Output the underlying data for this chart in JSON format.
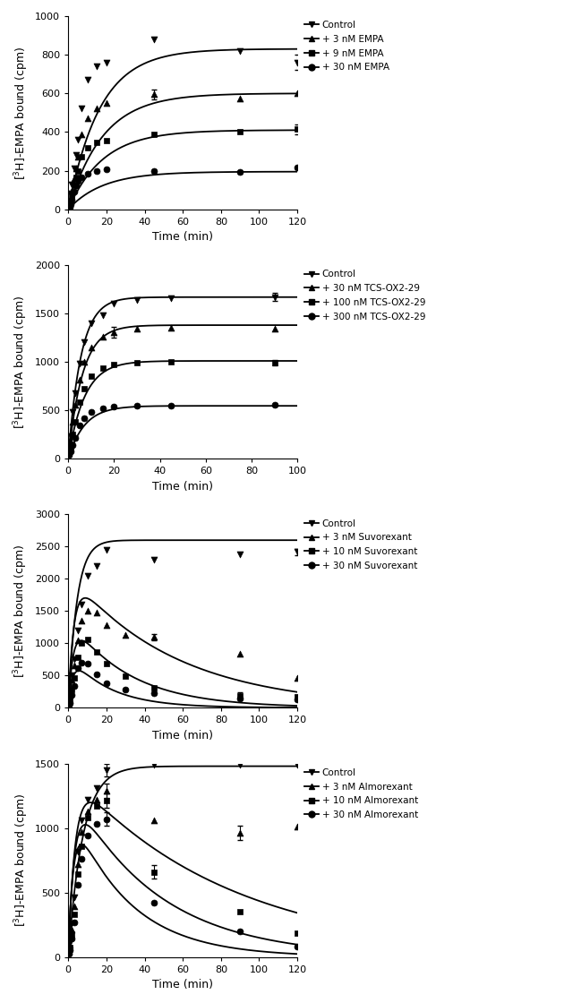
{
  "panels": [
    {
      "ylabel": "[$^{3}$H]-EMPA bound (cpm)",
      "xlabel": "Time (min)",
      "ylim": [
        0,
        1000
      ],
      "yticks": [
        0,
        200,
        400,
        600,
        800,
        1000
      ],
      "xlim": [
        0,
        120
      ],
      "xticks": [
        0,
        20,
        40,
        60,
        80,
        100,
        120
      ],
      "legend_labels": [
        "Control",
        "+ 3 nM EMPA",
        "+ 9 nM EMPA",
        "+ 30 nM EMPA"
      ],
      "markers": [
        "v",
        "^",
        "s",
        "o"
      ],
      "curves": [
        {
          "Bmax": 830,
          "kon": 0.06,
          "type": "assoc"
        },
        {
          "Bmax": 600,
          "kon": 0.055,
          "type": "assoc"
        },
        {
          "Bmax": 410,
          "kon": 0.055,
          "type": "assoc"
        },
        {
          "Bmax": 195,
          "kon": 0.055,
          "type": "assoc"
        }
      ],
      "scatter_data": [
        {
          "x": [
            0.5,
            1,
            1.5,
            2,
            3,
            4,
            5,
            7,
            10,
            15,
            20,
            45,
            90,
            120
          ],
          "y": [
            15,
            35,
            80,
            130,
            210,
            280,
            360,
            520,
            670,
            740,
            760,
            880,
            820,
            760
          ],
          "yerr": [
            0,
            0,
            0,
            0,
            0,
            0,
            0,
            0,
            0,
            0,
            0,
            0,
            0,
            40
          ]
        },
        {
          "x": [
            0.5,
            1,
            1.5,
            2,
            3,
            4,
            5,
            7,
            10,
            15,
            20,
            45,
            90,
            120
          ],
          "y": [
            10,
            25,
            55,
            95,
            160,
            210,
            270,
            390,
            470,
            520,
            550,
            595,
            575,
            600
          ],
          "yerr": [
            0,
            0,
            0,
            0,
            0,
            0,
            0,
            0,
            0,
            0,
            0,
            25,
            0,
            0
          ]
        },
        {
          "x": [
            0.5,
            1,
            1.5,
            2,
            3,
            4,
            5,
            7,
            10,
            15,
            20,
            45,
            90,
            120
          ],
          "y": [
            8,
            18,
            40,
            70,
            125,
            165,
            200,
            270,
            320,
            345,
            355,
            390,
            400,
            415
          ],
          "yerr": [
            0,
            0,
            0,
            0,
            0,
            0,
            0,
            0,
            0,
            0,
            0,
            0,
            0,
            25
          ]
        },
        {
          "x": [
            0.5,
            1,
            1.5,
            2,
            3,
            4,
            5,
            7,
            10,
            15,
            20,
            45,
            90,
            120
          ],
          "y": [
            5,
            12,
            28,
            52,
            90,
            125,
            145,
            165,
            185,
            200,
            205,
            200,
            195,
            215
          ],
          "yerr": [
            0,
            0,
            0,
            0,
            0,
            0,
            0,
            0,
            0,
            0,
            0,
            0,
            0,
            0
          ]
        }
      ]
    },
    {
      "ylabel": "[$^{3}$H]-EMPA bound (cpm)",
      "xlabel": "Time (min)",
      "ylim": [
        0,
        2000
      ],
      "yticks": [
        0,
        500,
        1000,
        1500,
        2000
      ],
      "xlim": [
        0,
        100
      ],
      "xticks": [
        0,
        20,
        40,
        60,
        80,
        100
      ],
      "legend_labels": [
        "Control",
        "+ 30 nM TCS-OX2-29",
        "+ 100 nM TCS-OX2-29",
        "+ 300 nM TCS-OX2-29"
      ],
      "markers": [
        "v",
        "^",
        "s",
        "o"
      ],
      "curves": [
        {
          "Bmax": 1670,
          "kon": 0.18,
          "type": "assoc"
        },
        {
          "Bmax": 1380,
          "kon": 0.16,
          "type": "assoc"
        },
        {
          "Bmax": 1010,
          "kon": 0.14,
          "type": "assoc"
        },
        {
          "Bmax": 545,
          "kon": 0.14,
          "type": "assoc"
        }
      ],
      "scatter_data": [
        {
          "x": [
            0.5,
            1,
            2,
            3,
            5,
            7,
            10,
            15,
            20,
            30,
            45,
            90
          ],
          "y": [
            120,
            230,
            480,
            680,
            980,
            1200,
            1400,
            1480,
            1600,
            1640,
            1660,
            1670
          ],
          "yerr": [
            0,
            0,
            0,
            0,
            0,
            0,
            0,
            0,
            0,
            0,
            0,
            40
          ]
        },
        {
          "x": [
            0.5,
            1,
            2,
            3,
            5,
            7,
            10,
            15,
            20,
            30,
            45,
            90
          ],
          "y": [
            90,
            180,
            380,
            560,
            820,
            1000,
            1150,
            1260,
            1310,
            1340,
            1355,
            1340
          ],
          "yerr": [
            0,
            0,
            0,
            0,
            0,
            0,
            0,
            0,
            55,
            0,
            0,
            0
          ]
        },
        {
          "x": [
            0.5,
            1,
            2,
            3,
            5,
            7,
            10,
            15,
            20,
            30,
            45,
            90
          ],
          "y": [
            60,
            120,
            250,
            380,
            580,
            720,
            850,
            940,
            975,
            990,
            1005,
            990
          ],
          "yerr": [
            0,
            0,
            0,
            0,
            0,
            0,
            0,
            0,
            0,
            0,
            0,
            30
          ]
        },
        {
          "x": [
            0.5,
            1,
            2,
            3,
            5,
            7,
            10,
            15,
            20,
            30,
            45,
            90
          ],
          "y": [
            35,
            70,
            140,
            210,
            340,
            420,
            480,
            520,
            535,
            545,
            550,
            555
          ],
          "yerr": [
            0,
            0,
            0,
            0,
            0,
            0,
            0,
            0,
            0,
            0,
            0,
            0
          ]
        }
      ]
    },
    {
      "ylabel": "[$^{3}$H]-EMPA bound (cpm)",
      "xlabel": "Time (min)",
      "ylim": [
        0,
        3000
      ],
      "yticks": [
        0,
        500,
        1000,
        1500,
        2000,
        2500,
        3000
      ],
      "xlim": [
        0,
        120
      ],
      "xticks": [
        0,
        20,
        40,
        60,
        80,
        100,
        120
      ],
      "legend_labels": [
        "Control",
        "+ 3 nM Suvorexant",
        "+ 10 nM Suvorexant",
        "+ 30 nM Suvorexant"
      ],
      "markers": [
        "v",
        "^",
        "s",
        "o"
      ],
      "curves": [
        {
          "Bmax": 2600,
          "kon": 0.22,
          "koff": 0.0,
          "type": "assoc"
        },
        {
          "Bmax": 2000,
          "peak": 1750,
          "kon": 0.35,
          "koff": 0.018,
          "type": "compete"
        },
        {
          "Bmax": 1300,
          "peak": 1050,
          "kon": 0.4,
          "koff": 0.032,
          "type": "compete"
        },
        {
          "Bmax": 750,
          "peak": 650,
          "kon": 0.45,
          "koff": 0.048,
          "type": "compete"
        }
      ],
      "scatter_data": [
        {
          "x": [
            0.5,
            1,
            2,
            3,
            5,
            7,
            10,
            15,
            20,
            45,
            90,
            120
          ],
          "y": [
            120,
            250,
            500,
            750,
            1200,
            1600,
            2050,
            2200,
            2450,
            2300,
            2380,
            2420
          ],
          "yerr": [
            0,
            0,
            0,
            0,
            0,
            0,
            0,
            0,
            0,
            0,
            0,
            50
          ]
        },
        {
          "x": [
            0.5,
            1,
            2,
            3,
            5,
            7,
            10,
            15,
            20,
            30,
            45,
            90,
            120
          ],
          "y": [
            100,
            200,
            430,
            650,
            1050,
            1350,
            1500,
            1480,
            1280,
            1130,
            1100,
            840,
            460
          ],
          "yerr": [
            0,
            0,
            0,
            0,
            0,
            0,
            0,
            0,
            0,
            0,
            50,
            0,
            0
          ]
        },
        {
          "x": [
            0.5,
            1,
            2,
            3,
            5,
            7,
            10,
            15,
            20,
            30,
            45,
            90,
            120
          ],
          "y": [
            60,
            120,
            280,
            460,
            780,
            1000,
            1060,
            870,
            680,
            490,
            310,
            190,
            170
          ],
          "yerr": [
            0,
            0,
            0,
            0,
            0,
            0,
            0,
            0,
            0,
            0,
            0,
            50,
            30
          ]
        },
        {
          "x": [
            0.5,
            1,
            2,
            3,
            5,
            7,
            10,
            15,
            20,
            30,
            45,
            90,
            120
          ],
          "y": [
            40,
            80,
            200,
            340,
            620,
            700,
            680,
            520,
            380,
            280,
            230,
            145,
            125
          ],
          "yerr": [
            0,
            0,
            0,
            0,
            0,
            0,
            0,
            0,
            0,
            0,
            0,
            0,
            0
          ]
        }
      ]
    },
    {
      "ylabel": "[$^{3}$H]-EMPA bound (cpm)",
      "xlabel": "Time (min)",
      "ylim": [
        0,
        1500
      ],
      "yticks": [
        0,
        500,
        1000,
        1500
      ],
      "xlim": [
        0,
        120
      ],
      "xticks": [
        0,
        20,
        40,
        60,
        80,
        100,
        120
      ],
      "legend_labels": [
        "Control",
        "+ 3 nM Almorexant",
        "+ 10 nM Almorexant",
        "+ 30 nM Almorexant"
      ],
      "markers": [
        "v",
        "^",
        "s",
        "o"
      ],
      "curves": [
        {
          "Bmax": 1480,
          "kon": 0.13,
          "koff": 0.0,
          "type": "assoc"
        },
        {
          "Bmax": 1380,
          "peak": 1300,
          "kon": 0.28,
          "koff": 0.012,
          "type": "compete"
        },
        {
          "Bmax": 1250,
          "peak": 1200,
          "kon": 0.32,
          "koff": 0.022,
          "type": "compete"
        },
        {
          "Bmax": 1100,
          "peak": 1050,
          "kon": 0.38,
          "koff": 0.033,
          "type": "compete"
        }
      ],
      "scatter_data": [
        {
          "x": [
            0.5,
            1,
            2,
            3,
            5,
            7,
            10,
            15,
            20,
            45,
            90,
            120
          ],
          "y": [
            55,
            110,
            260,
            460,
            820,
            1060,
            1220,
            1310,
            1450,
            1490,
            1490,
            1490
          ],
          "yerr": [
            0,
            0,
            0,
            0,
            0,
            0,
            0,
            0,
            50,
            0,
            0,
            0
          ]
        },
        {
          "x": [
            0.5,
            1,
            2,
            3,
            5,
            7,
            10,
            15,
            20,
            45,
            90,
            120
          ],
          "y": [
            45,
            95,
            210,
            390,
            720,
            970,
            1130,
            1220,
            1290,
            1060,
            960,
            1010
          ],
          "yerr": [
            0,
            0,
            0,
            0,
            0,
            0,
            0,
            0,
            55,
            0,
            55,
            0
          ]
        },
        {
          "x": [
            0.5,
            1,
            2,
            3,
            5,
            7,
            10,
            15,
            20,
            45,
            90,
            120
          ],
          "y": [
            35,
            75,
            180,
            330,
            640,
            860,
            1080,
            1170,
            1210,
            660,
            350,
            185
          ],
          "yerr": [
            0,
            0,
            0,
            0,
            0,
            0,
            0,
            0,
            55,
            55,
            0,
            0
          ]
        },
        {
          "x": [
            0.5,
            1,
            2,
            3,
            5,
            7,
            10,
            15,
            20,
            45,
            90,
            120
          ],
          "y": [
            25,
            55,
            145,
            270,
            560,
            760,
            940,
            1030,
            1070,
            420,
            200,
            80
          ],
          "yerr": [
            0,
            0,
            0,
            0,
            0,
            0,
            0,
            0,
            55,
            0,
            0,
            0
          ]
        }
      ]
    }
  ],
  "figure_bg": "#ffffff",
  "line_color": "#000000",
  "marker_color": "#000000",
  "marker_size": 5,
  "linewidth": 1.3,
  "font_size": 9,
  "legend_fontsize": 7.5
}
